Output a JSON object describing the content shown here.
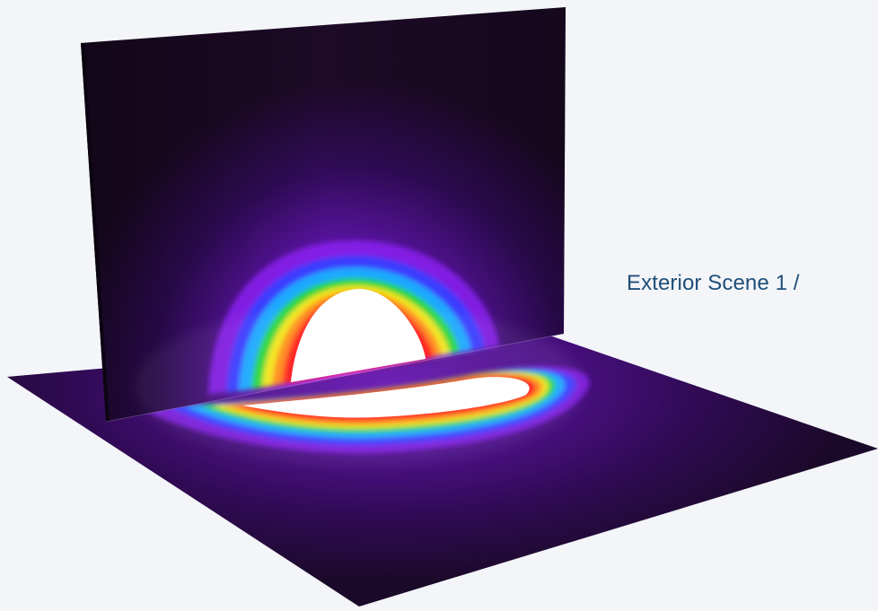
{
  "scene": {
    "label": "Exterior Scene 1 /"
  },
  "colors": {
    "background": "#f3f5f8",
    "label_text": "#1f4e79",
    "panel_dark": "#1c0a26",
    "glow_violet": "#9b1fff",
    "glow_blue": "#2e4dff",
    "glow_cyan": "#19b5ff",
    "glow_green": "#27d63a",
    "glow_yellow": "#f5e81a",
    "glow_orange": "#ff8a1a",
    "glow_red": "#ff1f1f",
    "core_white": "#ffffff"
  },
  "visual": {
    "description_icon": "light-distribution-render"
  }
}
